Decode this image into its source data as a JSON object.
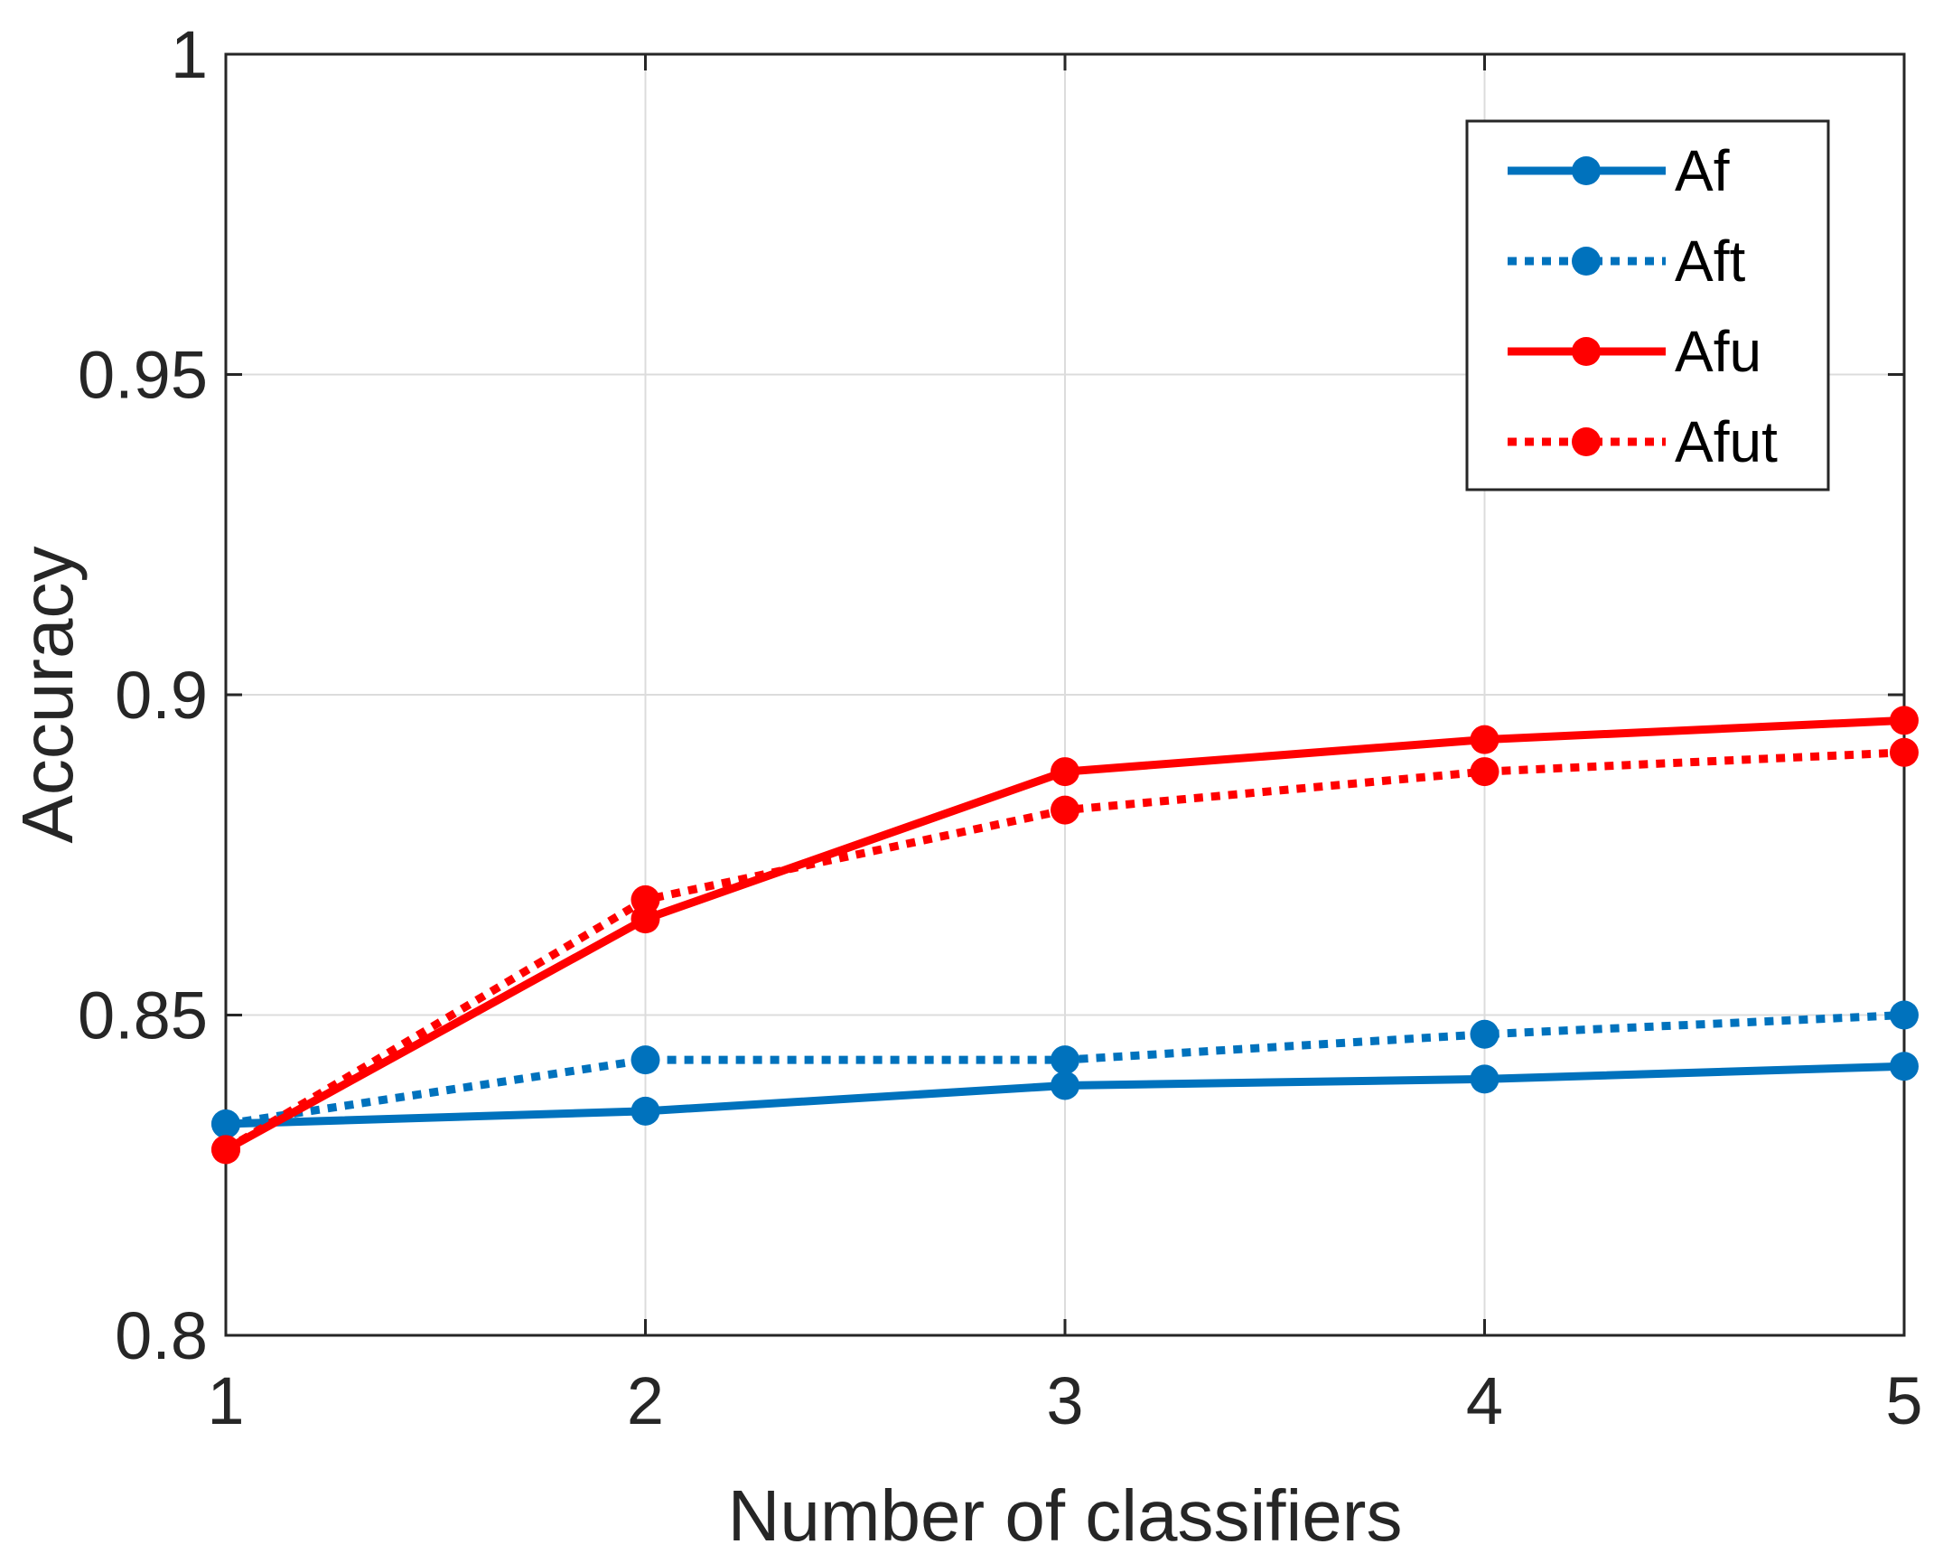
{
  "chart_data": {
    "type": "line",
    "title": "",
    "xlabel": "Number of classifiers",
    "ylabel": "Accuracy",
    "x": [
      1,
      2,
      3,
      4,
      5
    ],
    "xticks": [
      "1",
      "2",
      "3",
      "4",
      "5"
    ],
    "yticks": [
      "0.8",
      "0.85",
      "0.9",
      "0.95",
      "1"
    ],
    "xlim": [
      1,
      5
    ],
    "ylim": [
      0.8,
      1.0
    ],
    "grid": true,
    "legend_position": "top-right",
    "series": [
      {
        "name": "Af",
        "color": "#0072bd",
        "line_style": "solid",
        "marker": "circle",
        "values": [
          0.833,
          0.835,
          0.839,
          0.84,
          0.842
        ]
      },
      {
        "name": "Aft",
        "color": "#0072bd",
        "line_style": "dotted",
        "marker": "circle",
        "values": [
          0.833,
          0.843,
          0.843,
          0.847,
          0.85
        ]
      },
      {
        "name": "Afu",
        "color": "#ff0000",
        "line_style": "solid",
        "marker": "circle",
        "values": [
          0.829,
          0.865,
          0.888,
          0.893,
          0.896
        ]
      },
      {
        "name": "Afut",
        "color": "#ff0000",
        "line_style": "dotted",
        "marker": "circle",
        "values": [
          0.829,
          0.868,
          0.882,
          0.888,
          0.891
        ]
      }
    ]
  }
}
